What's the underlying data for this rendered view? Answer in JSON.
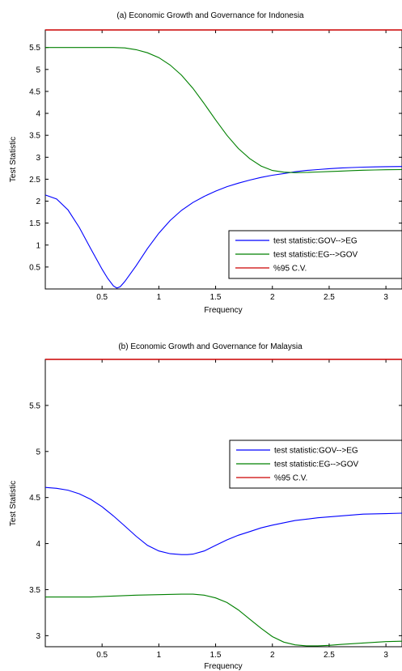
{
  "chart_data": [
    {
      "type": "line",
      "title": "(a) Economic Growth and Governance for Indonesia",
      "xlabel": "Frequency",
      "ylabel": "Test Statistic",
      "xlim": [
        0,
        3.1416
      ],
      "ylim": [
        0,
        5.9
      ],
      "xticks": [
        0.5,
        1,
        1.5,
        2,
        2.5,
        3
      ],
      "xtick_labels": [
        "0.5",
        "1",
        "1.5",
        "2",
        "2.5",
        "3"
      ],
      "yticks": [
        0.5,
        1,
        1.5,
        2,
        2.5,
        3,
        3.5,
        4,
        4.5,
        5,
        5.5
      ],
      "ytick_labels": [
        "0.5",
        "1",
        "1.5",
        "2",
        "2.5",
        "3",
        "3.5",
        "4",
        "4.5",
        "5",
        "5.5"
      ],
      "grid": false,
      "legend_position": "bottom-right",
      "series": [
        {
          "name": "test statistic:GOV-->EG",
          "color": "#0000ff",
          "x": [
            0,
            0.1,
            0.2,
            0.3,
            0.4,
            0.5,
            0.55,
            0.6,
            0.63,
            0.66,
            0.7,
            0.8,
            0.9,
            1.0,
            1.1,
            1.2,
            1.3,
            1.4,
            1.5,
            1.6,
            1.7,
            1.8,
            1.9,
            2.0,
            2.1,
            2.2,
            2.3,
            2.4,
            2.5,
            2.6,
            2.7,
            2.8,
            2.9,
            3.0,
            3.1416
          ],
          "y": [
            2.14,
            2.05,
            1.8,
            1.4,
            0.92,
            0.45,
            0.24,
            0.07,
            0.02,
            0.05,
            0.17,
            0.53,
            0.92,
            1.27,
            1.56,
            1.79,
            1.97,
            2.11,
            2.23,
            2.33,
            2.41,
            2.48,
            2.54,
            2.59,
            2.63,
            2.67,
            2.7,
            2.72,
            2.74,
            2.755,
            2.765,
            2.775,
            2.78,
            2.785,
            2.79
          ]
        },
        {
          "name": "test statistic:EG-->GOV",
          "color": "#008000",
          "x": [
            0,
            0.2,
            0.4,
            0.6,
            0.7,
            0.8,
            0.9,
            1.0,
            1.1,
            1.2,
            1.3,
            1.4,
            1.5,
            1.6,
            1.7,
            1.8,
            1.9,
            2.0,
            2.1,
            2.2,
            2.3,
            2.4,
            2.5,
            2.6,
            2.7,
            2.8,
            2.9,
            3.0,
            3.1416
          ],
          "y": [
            5.5,
            5.5,
            5.5,
            5.5,
            5.49,
            5.45,
            5.38,
            5.27,
            5.1,
            4.87,
            4.57,
            4.22,
            3.85,
            3.5,
            3.2,
            2.97,
            2.8,
            2.7,
            2.66,
            2.65,
            2.655,
            2.665,
            2.675,
            2.685,
            2.695,
            2.705,
            2.71,
            2.715,
            2.72
          ]
        },
        {
          "name": "%95 C.V.",
          "color": "#cc0000",
          "x": [
            0,
            3.1416
          ],
          "y": [
            5.9,
            5.9
          ]
        }
      ]
    },
    {
      "type": "line",
      "title": "(b) Economic Growth and Governance for Malaysia",
      "xlabel": "Frequency",
      "ylabel": "Test Statistic",
      "xlim": [
        0,
        3.1416
      ],
      "ylim": [
        2.88,
        6.0
      ],
      "xticks": [
        0.5,
        1,
        1.5,
        2,
        2.5,
        3
      ],
      "xtick_labels": [
        "0.5",
        "1",
        "1.5",
        "2",
        "2.5",
        "3"
      ],
      "yticks": [
        3,
        3.5,
        4,
        4.5,
        5,
        5.5
      ],
      "ytick_labels": [
        "3",
        "3.5",
        "4",
        "4.5",
        "5",
        "5.5"
      ],
      "grid": false,
      "legend_position": "right",
      "series": [
        {
          "name": "test statistic:GOV-->EG",
          "color": "#0000ff",
          "x": [
            0,
            0.1,
            0.2,
            0.3,
            0.4,
            0.5,
            0.6,
            0.7,
            0.8,
            0.9,
            1.0,
            1.1,
            1.2,
            1.25,
            1.3,
            1.4,
            1.5,
            1.6,
            1.7,
            1.8,
            1.9,
            2.0,
            2.2,
            2.4,
            2.6,
            2.8,
            3.0,
            3.1416
          ],
          "y": [
            4.61,
            4.6,
            4.58,
            4.54,
            4.48,
            4.4,
            4.3,
            4.19,
            4.08,
            3.98,
            3.92,
            3.89,
            3.88,
            3.88,
            3.885,
            3.92,
            3.98,
            4.04,
            4.09,
            4.13,
            4.17,
            4.2,
            4.25,
            4.28,
            4.3,
            4.32,
            4.325,
            4.33
          ]
        },
        {
          "name": "test statistic:EG-->GOV",
          "color": "#008000",
          "x": [
            0,
            0.2,
            0.4,
            0.6,
            0.8,
            1.0,
            1.2,
            1.3,
            1.4,
            1.5,
            1.6,
            1.7,
            1.8,
            1.9,
            2.0,
            2.1,
            2.2,
            2.3,
            2.4,
            2.5,
            2.6,
            2.8,
            3.0,
            3.1416
          ],
          "y": [
            3.42,
            3.42,
            3.42,
            3.43,
            3.44,
            3.445,
            3.45,
            3.45,
            3.44,
            3.41,
            3.36,
            3.28,
            3.18,
            3.08,
            2.99,
            2.93,
            2.9,
            2.89,
            2.89,
            2.895,
            2.905,
            2.92,
            2.935,
            2.94
          ]
        },
        {
          "name": "%95 C.V.",
          "color": "#cc0000",
          "x": [
            0,
            3.1416
          ],
          "y": [
            6.0,
            6.0
          ]
        }
      ]
    }
  ]
}
